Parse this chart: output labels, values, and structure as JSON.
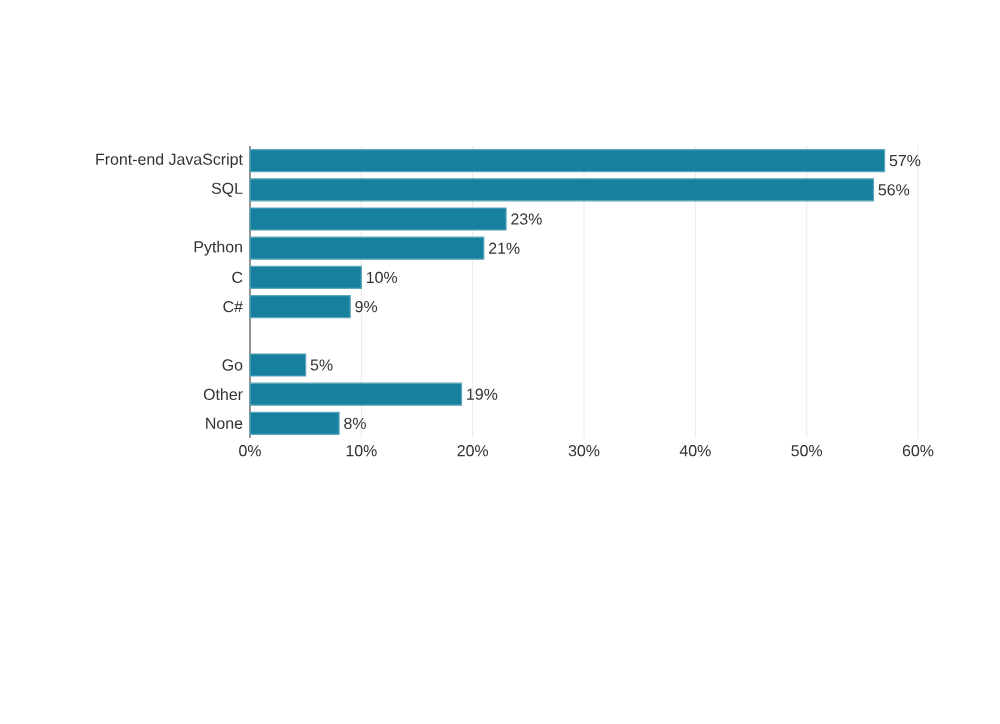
{
  "chart_data": {
    "type": "bar",
    "orientation": "horizontal",
    "categories": [
      "Front-end JavaScript",
      "SQL",
      null,
      "Python",
      "C",
      "C#",
      null,
      "Go",
      "Other",
      "None"
    ],
    "values": [
      57,
      56,
      23,
      21,
      10,
      9,
      null,
      5,
      19,
      8
    ],
    "value_labels": [
      "57%",
      "56%",
      "23%",
      "21%",
      "10%",
      "9%",
      null,
      "5%",
      "19%",
      "8%"
    ],
    "color": "#17809e",
    "xlim": [
      0,
      60
    ],
    "xticks": [
      {
        "value": 0,
        "label": "0%"
      },
      {
        "value": 10,
        "label": "10%"
      },
      {
        "value": 20,
        "label": "20%"
      },
      {
        "value": 30,
        "label": "30%"
      },
      {
        "value": 40,
        "label": "40%"
      },
      {
        "value": 50,
        "label": "50%"
      },
      {
        "value": 60,
        "label": "60%"
      }
    ],
    "grid": "x"
  }
}
